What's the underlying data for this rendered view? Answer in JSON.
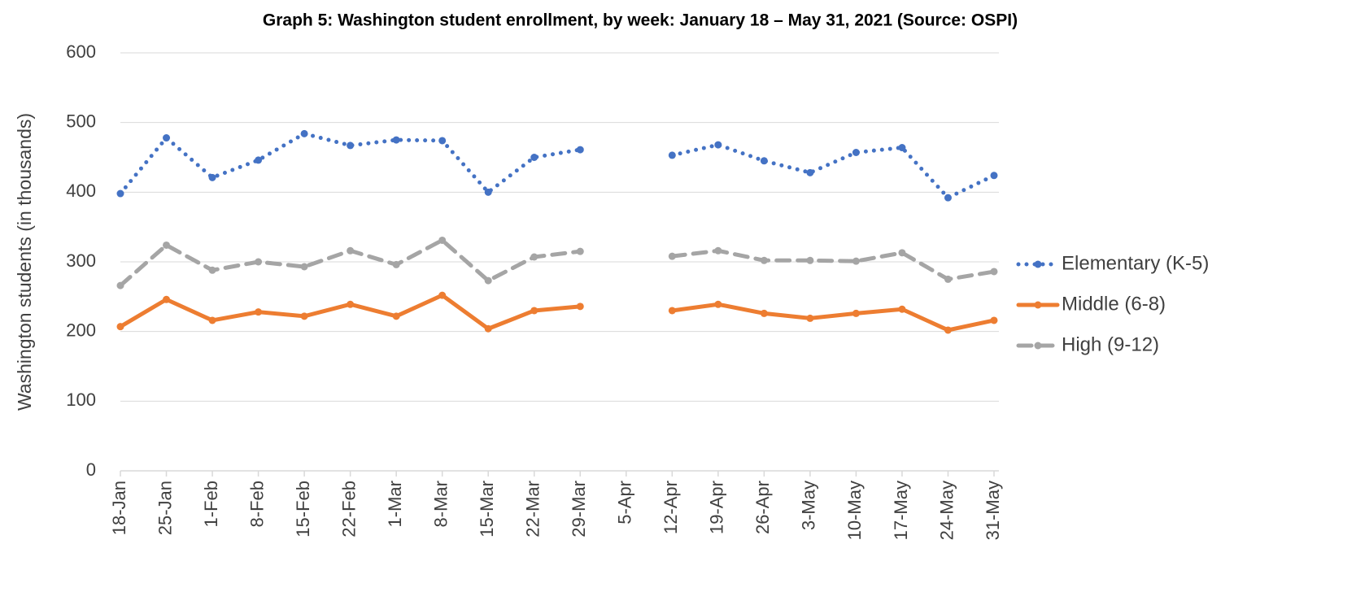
{
  "chart_data": {
    "type": "line",
    "title": "Graph 5: Washington student enrollment, by week: January 18 – May 31, 2021 (Source: OSPI)",
    "y_label": "Washington students (in thousands)",
    "categories": [
      "18-Jan",
      "25-Jan",
      "1-Feb",
      "8-Feb",
      "15-Feb",
      "22-Feb",
      "1-Mar",
      "8-Mar",
      "15-Mar",
      "22-Mar",
      "29-Mar",
      "5-Apr",
      "12-Apr",
      "19-Apr",
      "26-Apr",
      "3-May",
      "10-May",
      "17-May",
      "24-May",
      "31-May"
    ],
    "series": [
      {
        "name": "Elementary (K-5)",
        "color": "#4472c4",
        "line_style": "dotted",
        "values": [
          398,
          478,
          421,
          446,
          484,
          467,
          475,
          474,
          400,
          450,
          461,
          null,
          453,
          468,
          445,
          428,
          457,
          464,
          392,
          424
        ]
      },
      {
        "name": "Middle (6-8)",
        "color": "#ed7d31",
        "line_style": "solid",
        "values": [
          207,
          246,
          216,
          228,
          222,
          239,
          222,
          252,
          204,
          230,
          236,
          null,
          230,
          239,
          226,
          219,
          226,
          232,
          202,
          216
        ]
      },
      {
        "name": "High (9-12)",
        "color": "#a5a5a5",
        "line_style": "dashed",
        "values": [
          266,
          324,
          288,
          300,
          293,
          316,
          296,
          331,
          273,
          307,
          315,
          null,
          308,
          316,
          302,
          302,
          301,
          313,
          275,
          286
        ]
      }
    ],
    "ylim": [
      0,
      600
    ],
    "yticks": [
      0,
      100,
      200,
      300,
      400,
      500,
      600
    ],
    "grid": true,
    "legend": "right"
  }
}
